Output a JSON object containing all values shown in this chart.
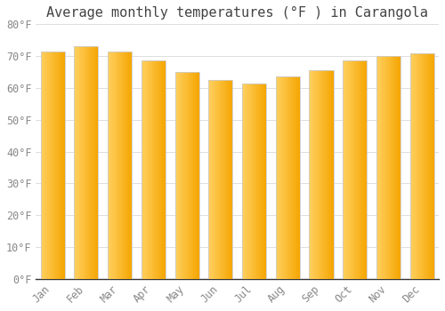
{
  "title": "Average monthly temperatures (°F ) in Carangola",
  "categories": [
    "Jan",
    "Feb",
    "Mar",
    "Apr",
    "May",
    "Jun",
    "Jul",
    "Aug",
    "Sep",
    "Oct",
    "Nov",
    "Dec"
  ],
  "values": [
    71.5,
    73.0,
    71.5,
    68.5,
    65.0,
    62.5,
    61.5,
    63.5,
    65.5,
    68.5,
    70.0,
    71.0
  ],
  "bar_color_left": "#FFD060",
  "bar_color_right": "#F5A500",
  "bar_edge_color": "#CCCCCC",
  "ylim": [
    0,
    80
  ],
  "yticks": [
    0,
    10,
    20,
    30,
    40,
    50,
    60,
    70,
    80
  ],
  "ytick_labels": [
    "0°F",
    "10°F",
    "20°F",
    "30°F",
    "40°F",
    "50°F",
    "60°F",
    "70°F",
    "80°F"
  ],
  "background_color": "#FFFFFF",
  "grid_color": "#DDDDDD",
  "title_fontsize": 11,
  "tick_fontsize": 8.5
}
